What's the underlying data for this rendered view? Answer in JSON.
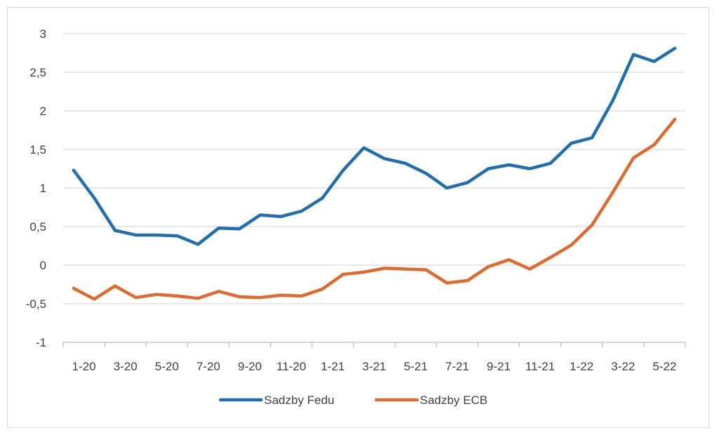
{
  "chart_data": {
    "type": "line",
    "title": "",
    "xlabel": "",
    "ylabel": "",
    "ylim": [
      -1,
      3
    ],
    "yticks": [
      -1,
      -0.5,
      0,
      0.5,
      1,
      1.5,
      2,
      2.5,
      3
    ],
    "ytick_labels": [
      "-1",
      "-0,5",
      "0",
      "0,5",
      "1",
      "1,5",
      "2",
      "2,5",
      "3"
    ],
    "x": [
      "1-20",
      "2-20",
      "3-20",
      "4-20",
      "5-20",
      "6-20",
      "7-20",
      "8-20",
      "9-20",
      "10-20",
      "11-20",
      "12-20",
      "1-21",
      "2-21",
      "3-21",
      "4-21",
      "5-21",
      "6-21",
      "7-21",
      "8-21",
      "9-21",
      "10-21",
      "11-21",
      "12-21",
      "1-22",
      "2-22",
      "3-22",
      "4-22",
      "5-22",
      "6-22"
    ],
    "xtick_labels": [
      "1-20",
      "3-20",
      "5-20",
      "7-20",
      "9-20",
      "11-20",
      "1-21",
      "3-21",
      "5-21",
      "7-21",
      "9-21",
      "11-21",
      "1-22",
      "3-22",
      "5-22"
    ],
    "grid": true,
    "legend_position": "bottom",
    "series": [
      {
        "name": "Sadzby Fedu",
        "color": "#1f6fae",
        "values": [
          1.23,
          0.87,
          0.45,
          0.39,
          0.39,
          0.38,
          0.27,
          0.48,
          0.47,
          0.65,
          0.63,
          0.7,
          0.87,
          1.23,
          1.52,
          1.38,
          1.32,
          1.19,
          1.0,
          1.07,
          1.25,
          1.3,
          1.25,
          1.32,
          1.58,
          1.65,
          2.13,
          2.73,
          2.64,
          2.81
        ]
      },
      {
        "name": "Sadzby ECB",
        "color": "#e06a2b",
        "values": [
          -0.3,
          -0.44,
          -0.27,
          -0.42,
          -0.38,
          -0.4,
          -0.43,
          -0.34,
          -0.41,
          -0.42,
          -0.39,
          -0.4,
          -0.31,
          -0.12,
          -0.09,
          -0.04,
          -0.05,
          -0.06,
          -0.23,
          -0.2,
          -0.02,
          0.07,
          -0.05,
          0.1,
          0.26,
          0.52,
          0.94,
          1.39,
          1.56,
          1.89
        ]
      }
    ]
  }
}
